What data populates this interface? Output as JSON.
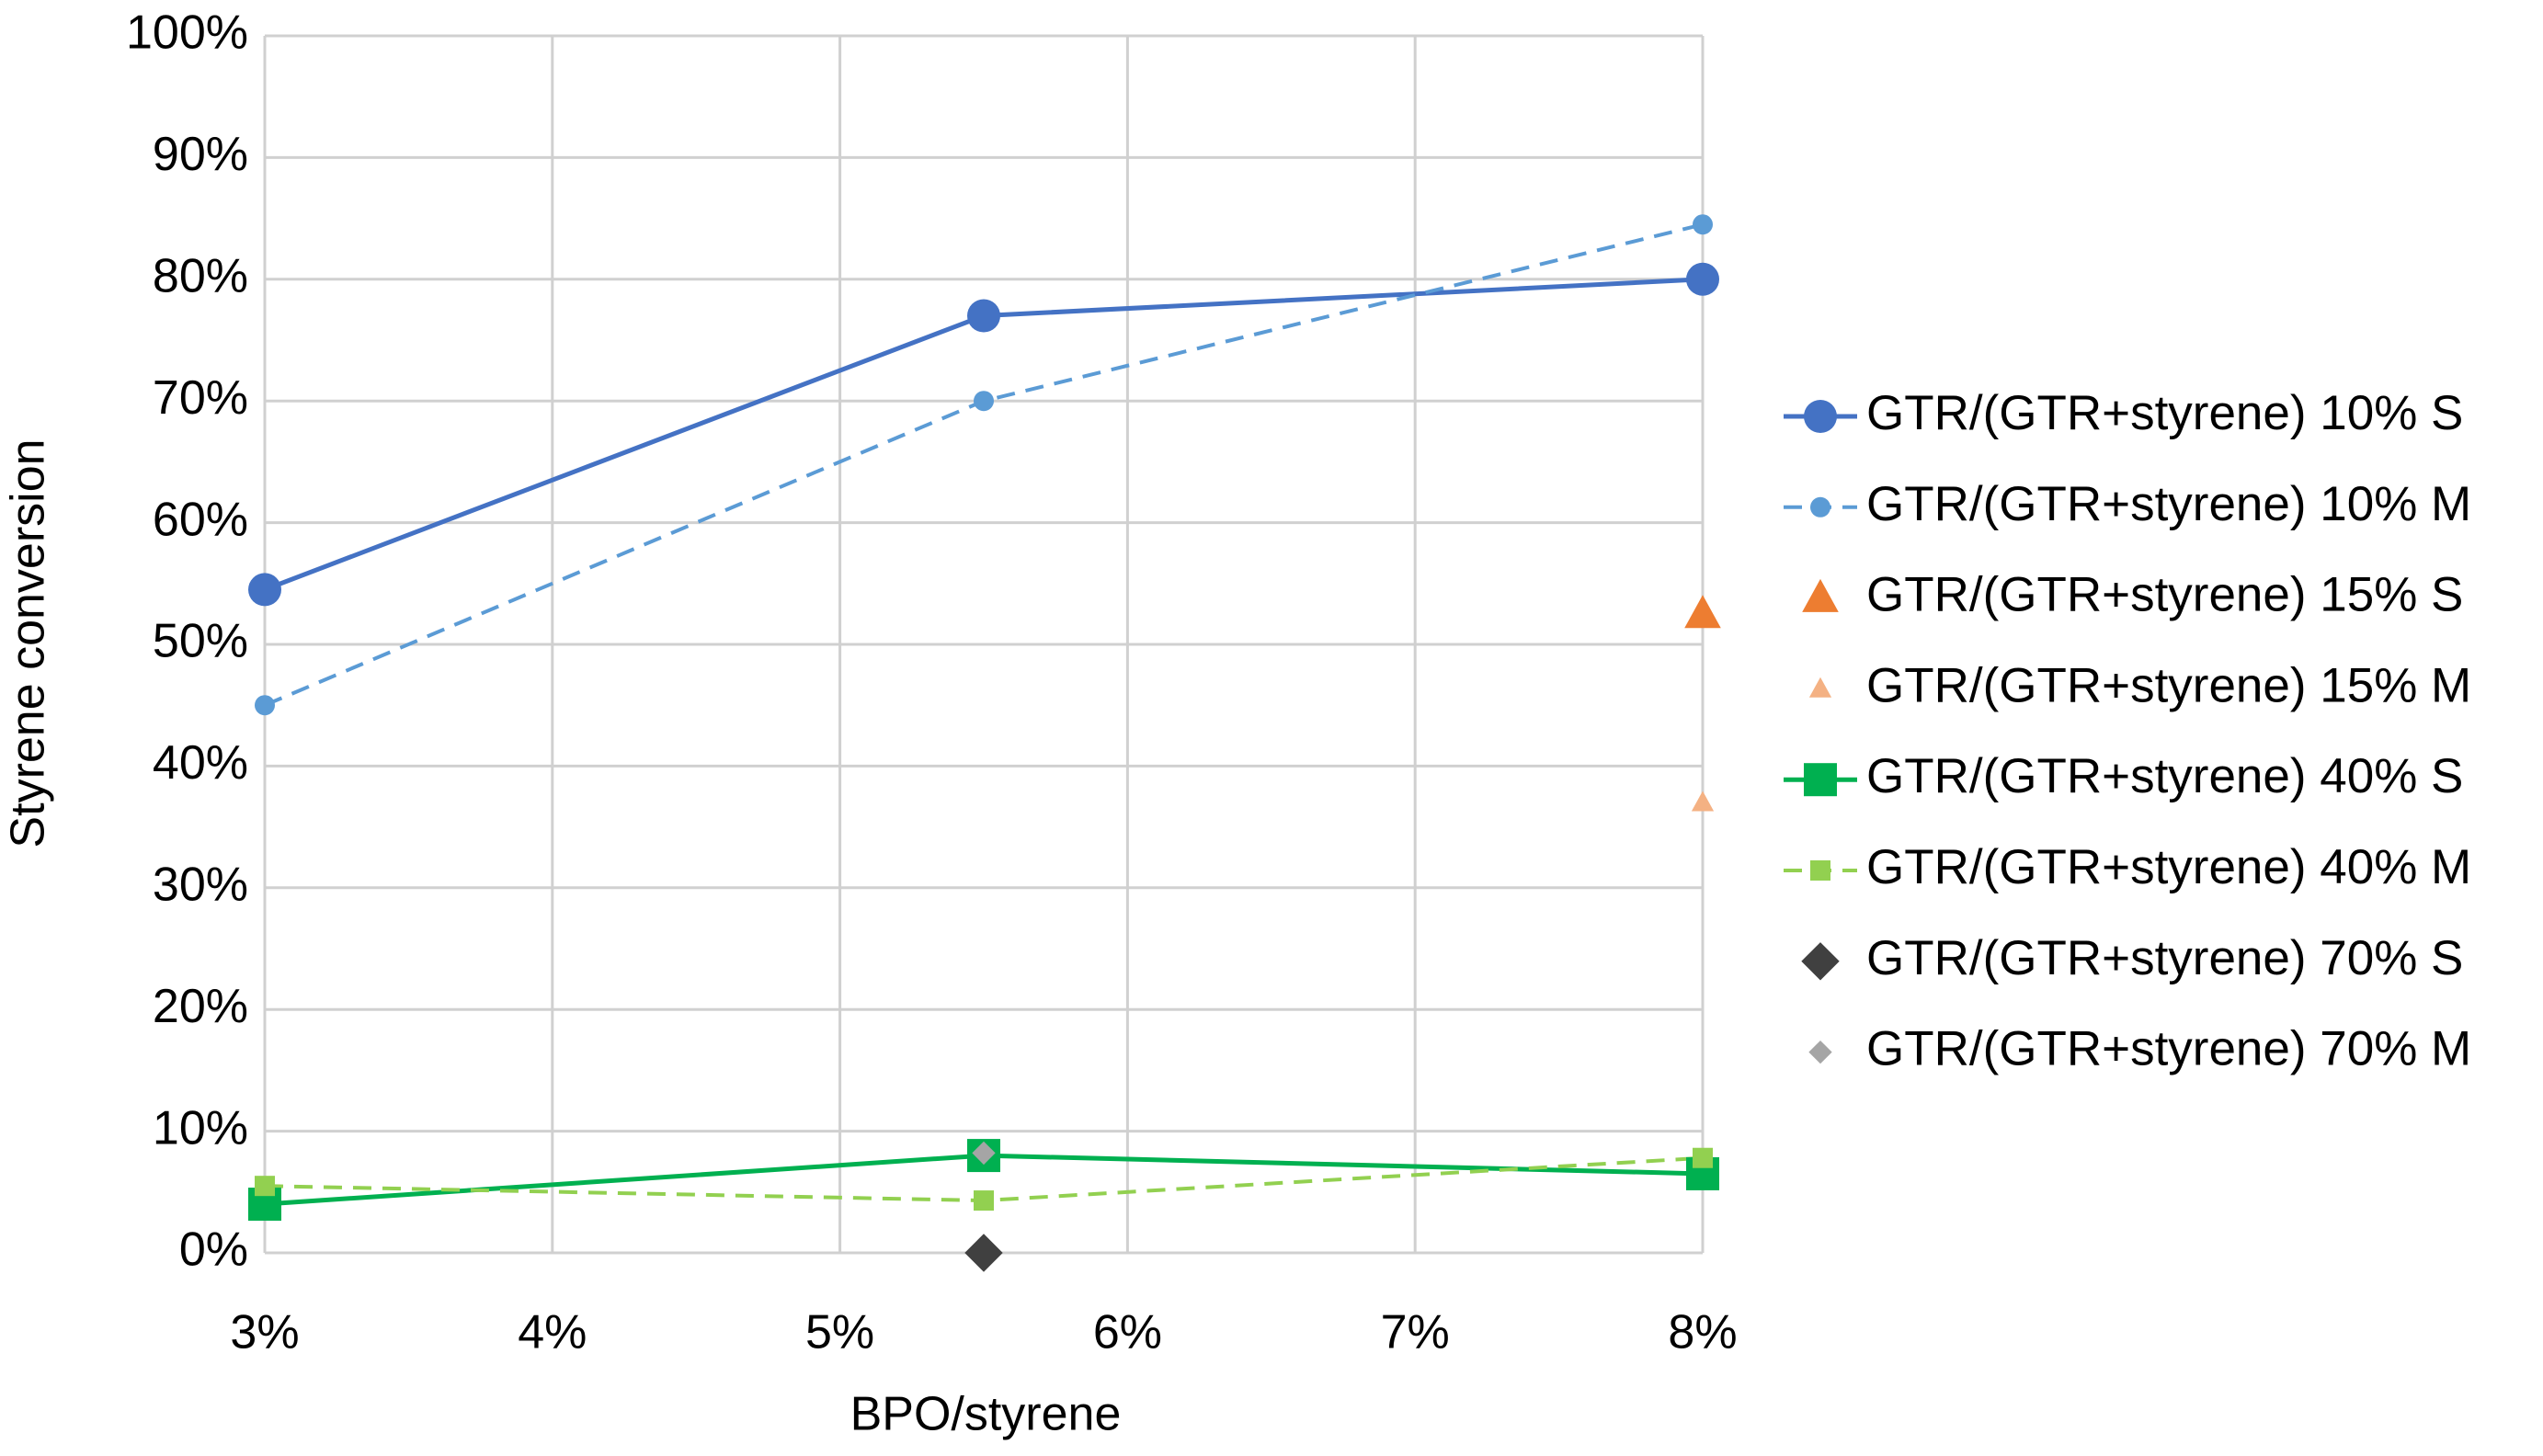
{
  "chart_data": {
    "type": "line",
    "xlabel": "BPO/styrene",
    "ylabel": "Styrene conversion",
    "xlim": [
      3,
      8
    ],
    "ylim": [
      0,
      100
    ],
    "xticks": [
      {
        "value": 3,
        "label": "3%"
      },
      {
        "value": 4,
        "label": "4%"
      },
      {
        "value": 5,
        "label": "5%"
      },
      {
        "value": 6,
        "label": "6%"
      },
      {
        "value": 7,
        "label": "7%"
      },
      {
        "value": 8,
        "label": "8%"
      }
    ],
    "yticks": [
      {
        "value": 0,
        "label": "0%"
      },
      {
        "value": 10,
        "label": "10%"
      },
      {
        "value": 20,
        "label": "20%"
      },
      {
        "value": 30,
        "label": "30%"
      },
      {
        "value": 40,
        "label": "40%"
      },
      {
        "value": 50,
        "label": "50%"
      },
      {
        "value": 60,
        "label": "60%"
      },
      {
        "value": 70,
        "label": "70%"
      },
      {
        "value": 80,
        "label": "80%"
      },
      {
        "value": 90,
        "label": "90%"
      },
      {
        "value": 100,
        "label": "100%"
      }
    ],
    "grid": true,
    "legend": "right",
    "series": [
      {
        "name": "GTR/(GTR+styrene) 10% S",
        "color": "#4472c4",
        "marker": "circle",
        "marker_size": "large",
        "line": "solid",
        "x": [
          3,
          5.5,
          8
        ],
        "values": [
          54.5,
          77,
          80
        ]
      },
      {
        "name": "GTR/(GTR+styrene) 10% M",
        "color": "#5b9bd5",
        "marker": "circle",
        "marker_size": "small",
        "line": "dashed",
        "x": [
          3,
          5.5,
          8
        ],
        "values": [
          45,
          70,
          84.5
        ]
      },
      {
        "name": "GTR/(GTR+styrene) 15% S",
        "color": "#ed7d31",
        "marker": "triangle",
        "marker_size": "large",
        "line": "none",
        "x": [
          8
        ],
        "values": [
          52.5
        ]
      },
      {
        "name": "GTR/(GTR+styrene) 15% M",
        "color": "#f4b183",
        "marker": "triangle",
        "marker_size": "small",
        "line": "none",
        "x": [
          8
        ],
        "values": [
          37
        ]
      },
      {
        "name": "GTR/(GTR+styrene) 40% S",
        "color": "#00b050",
        "marker": "square",
        "marker_size": "large",
        "line": "solid",
        "x": [
          3,
          5.5,
          8
        ],
        "values": [
          4,
          8,
          6.5
        ]
      },
      {
        "name": "GTR/(GTR+styrene) 40% M",
        "color": "#92d050",
        "marker": "square",
        "marker_size": "small",
        "line": "dashed",
        "x": [
          3,
          5.5,
          8
        ],
        "values": [
          5.5,
          4.3,
          7.8
        ]
      },
      {
        "name": "GTR/(GTR+styrene) 70% S",
        "color": "#404040",
        "marker": "diamond",
        "marker_size": "large",
        "line": "none",
        "x": [
          5.5
        ],
        "values": [
          0
        ]
      },
      {
        "name": "GTR/(GTR+styrene) 70% M",
        "color": "#a5a5a5",
        "marker": "diamond",
        "marker_size": "small",
        "line": "none",
        "x": [
          5.5
        ],
        "values": [
          8.2
        ]
      }
    ]
  }
}
